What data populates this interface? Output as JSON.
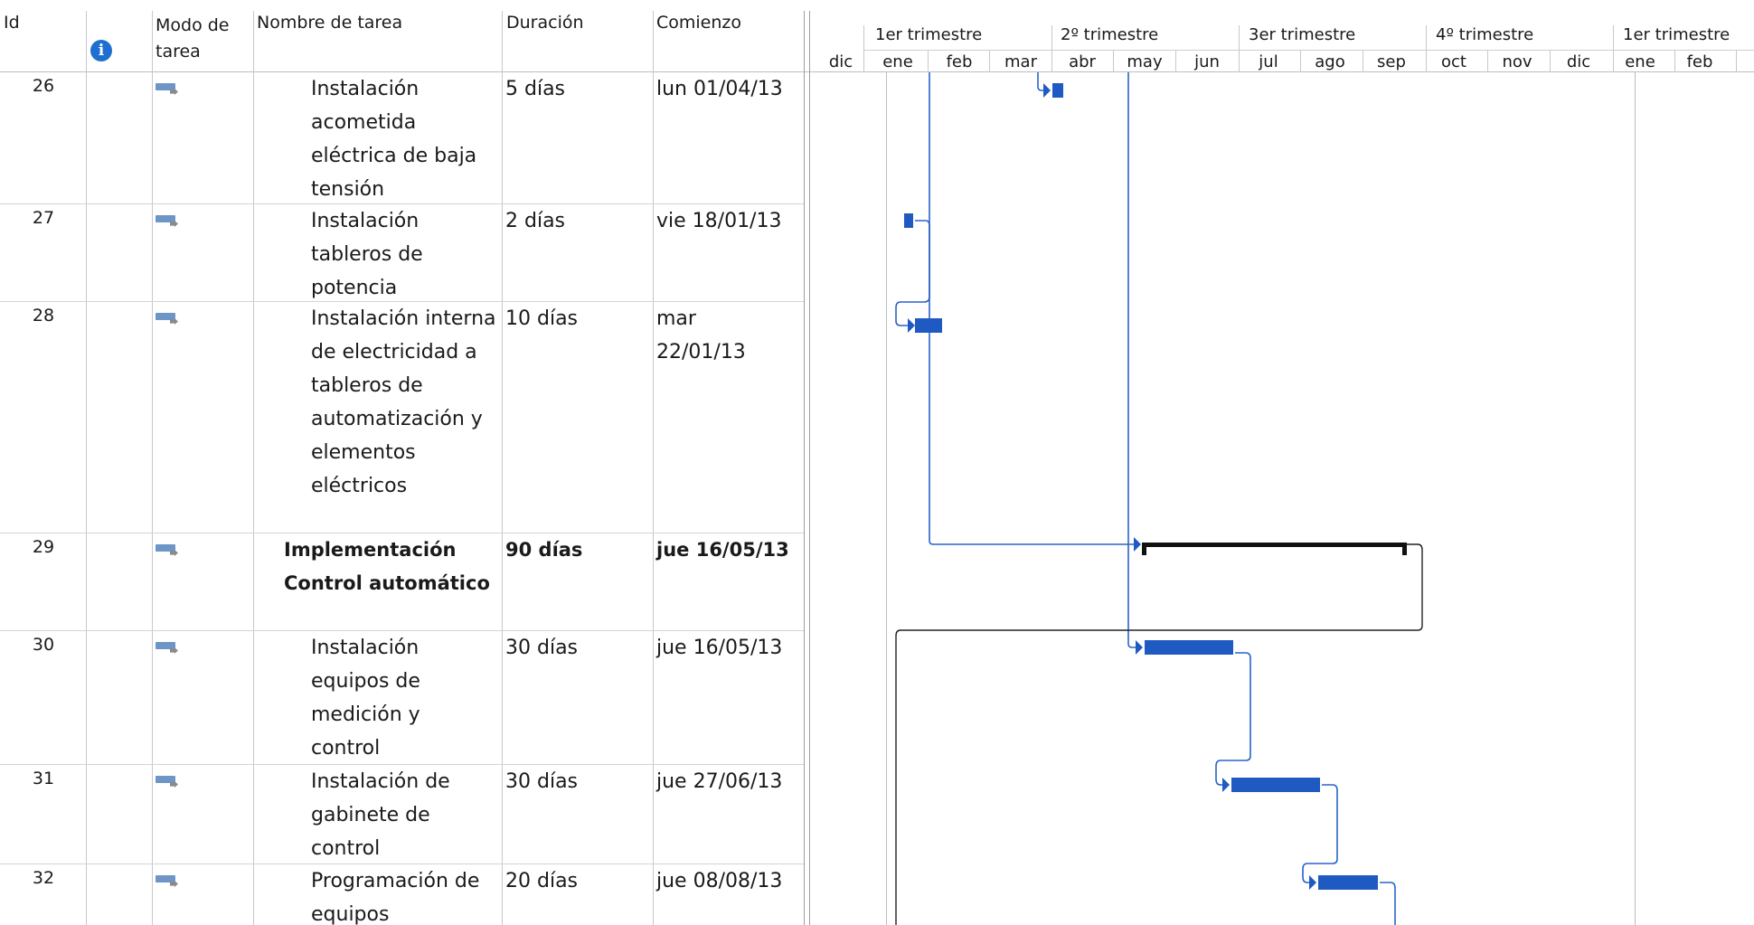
{
  "columns": {
    "id": "Id",
    "mode": "Modo de tarea",
    "mode_line1": "Modo de",
    "mode_line2": "tarea",
    "name": "Nombre de tarea",
    "duration": "Duración",
    "start": "Comienzo",
    "info_icon": "info-icon"
  },
  "timeline": {
    "quarters": [
      "1er trimestre",
      "2º trimestre",
      "3er trimestre",
      "4º trimestre",
      "1er trimestre"
    ],
    "months": [
      "dic",
      "ene",
      "feb",
      "mar",
      "abr",
      "may",
      "jun",
      "jul",
      "ago",
      "sep",
      "oct",
      "nov",
      "dic",
      "ene",
      "feb"
    ]
  },
  "tasks": [
    {
      "id": "26",
      "name": "Instalación acometida eléctrica de baja tensión",
      "duration": "5 días",
      "start": "lun 01/04/13",
      "summary": false
    },
    {
      "id": "27",
      "name": "Instalación tableros de potencia",
      "duration": "2 días",
      "start": "vie 18/01/13",
      "summary": false
    },
    {
      "id": "28",
      "name": "Instalación interna de electricidad a tableros de automatización y elementos eléctricos",
      "duration": "10 días",
      "start": "mar 22/01/13",
      "summary": false
    },
    {
      "id": "29",
      "name": "Implementación Control automático",
      "duration": "90 días",
      "start": "jue 16/05/13",
      "summary": true
    },
    {
      "id": "30",
      "name": "Instalación equipos de medición y control",
      "duration": "30 días",
      "start": "jue 16/05/13",
      "summary": false
    },
    {
      "id": "31",
      "name": "Instalación de gabinete de control",
      "duration": "30 días",
      "start": "jue 27/06/13",
      "summary": false
    },
    {
      "id": "32",
      "name": "Programación de equipos",
      "duration": "20 días",
      "start": "jue 08/08/13",
      "summary": false
    }
  ],
  "colors": {
    "bar": "#1f5ac2",
    "link": "#2a64c8",
    "summary": "#111111",
    "grid": "#d4d4d4"
  }
}
